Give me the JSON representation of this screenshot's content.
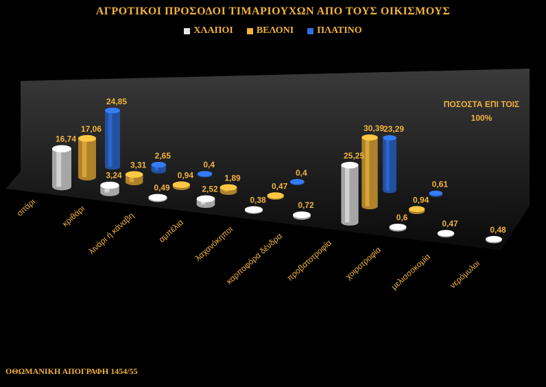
{
  "chart_data": {
    "type": "bar",
    "title": "ΑΓΡΟΤΙΚΟΙ ΠΡΟΣΟΔΟΙ ΤΙΜΑΡΙΟΥΧΩΝ ΑΠΟ ΤΟΥΣ ΟΙΚΙΣΜΟΥΣ",
    "categories": [
      "σιτάρι",
      "κριθάρι",
      "λινάρι ή κάναβη",
      "αμπέλια",
      "λαχανόκηποι",
      "καρποφόρα δένδρα",
      "προβατοτροφία",
      "χοιροτροφία",
      "μελισσοκομία",
      "νερόμυλοι"
    ],
    "series": [
      {
        "name": "ΧΛΑΠΟΙ",
        "color": "#e6e6e6",
        "values": [
          16.74,
          3.24,
          0.49,
          2.52,
          0.38,
          0.72,
          25.25,
          0.6,
          0.47,
          0.48
        ],
        "labels": [
          "16,74",
          "3,24",
          "0,49",
          "2,52",
          "0,38",
          "0,72",
          "25,25",
          "0,6",
          "0,47",
          "0,48"
        ]
      },
      {
        "name": "ΒΕΛΟΝΙ",
        "color": "#f2b33d",
        "values": [
          17.06,
          3.31,
          0.94,
          1.89,
          0.47,
          null,
          30.39,
          0.94,
          null,
          null
        ],
        "labels": [
          "17,06",
          "3,31",
          "0,94",
          "1,89",
          "0,47",
          "",
          "30,39",
          "0,94",
          "",
          ""
        ]
      },
      {
        "name": "ΠΛΑΤΙΝΟ",
        "color": "#2f6fe0",
        "values": [
          24.85,
          2.65,
          0.4,
          null,
          0.4,
          null,
          23.29,
          0.61,
          null,
          null
        ],
        "labels": [
          "24,85",
          "2,65",
          "0,4",
          "",
          "0,4",
          "",
          "23,29",
          "0,61",
          "",
          ""
        ]
      }
    ],
    "ylim": [
      0,
      35
    ],
    "grid": false,
    "legend_position": "top-center"
  },
  "annotation": {
    "line1": "ΠΟΣΟΣΤΑ ΕΠΙ ΤΟΙΣ",
    "line2": "100%"
  },
  "footer": "ΟΘΩΜΑΝΙΚΗ ΑΠΟΓΡΑΦΗ 1454/55"
}
